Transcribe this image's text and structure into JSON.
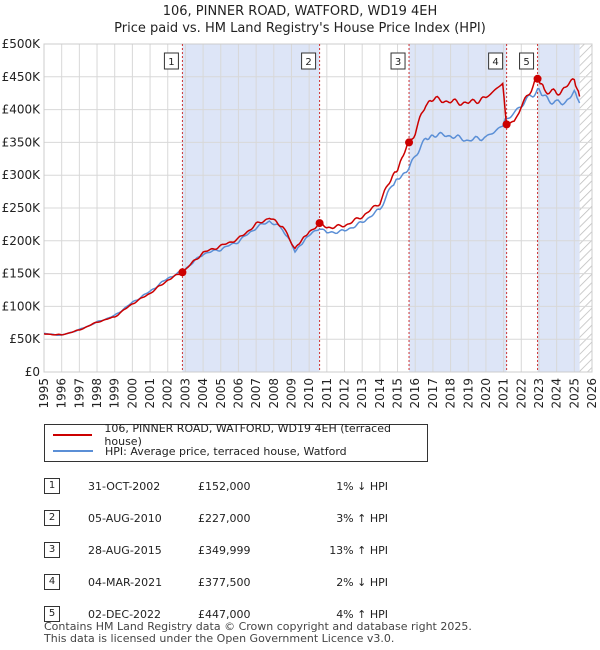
{
  "title_line1": "106, PINNER ROAD, WATFORD, WD19 4EH",
  "title_line2": "Price paid vs. HM Land Registry's House Price Index (HPI)",
  "chart_data": {
    "type": "line",
    "y_ticks": [
      "£0",
      "£50K",
      "£100K",
      "£150K",
      "£200K",
      "£250K",
      "£300K",
      "£350K",
      "£400K",
      "£450K",
      "£500K"
    ],
    "ylim": [
      0,
      500000
    ],
    "x_ticks": [
      "1995",
      "1996",
      "1997",
      "1998",
      "1999",
      "2000",
      "2001",
      "2002",
      "2003",
      "2004",
      "2005",
      "2006",
      "2007",
      "2008",
      "2009",
      "2010",
      "2011",
      "2012",
      "2013",
      "2014",
      "2015",
      "2016",
      "2017",
      "2018",
      "2019",
      "2020",
      "2021",
      "2022",
      "2023",
      "2024",
      "2025",
      "2026"
    ],
    "xlim": [
      1995,
      2026
    ],
    "colors": {
      "property": "#cc0000",
      "hpi": "#5b8fd6",
      "band": "#dde5f7",
      "grid": "#d8d8d8",
      "marker_line": "#cc3333"
    },
    "series": [
      {
        "name": "106, PINNER ROAD, WATFORD, WD19 4EH (terraced house)",
        "points": [
          [
            1995.0,
            58000
          ],
          [
            1996.0,
            56500
          ],
          [
            1997.0,
            64000
          ],
          [
            1998.0,
            76000
          ],
          [
            1999.0,
            84000
          ],
          [
            2000.0,
            104000
          ],
          [
            2001.0,
            120000
          ],
          [
            2002.0,
            140000
          ],
          [
            2002.83,
            152000
          ],
          [
            2004.0,
            182000
          ],
          [
            2005.0,
            192000
          ],
          [
            2006.0,
            203000
          ],
          [
            2007.0,
            225000
          ],
          [
            2007.75,
            235000
          ],
          [
            2008.5,
            222000
          ],
          [
            2009.2,
            188000
          ],
          [
            2010.0,
            213000
          ],
          [
            2010.59,
            227000
          ],
          [
            2011.0,
            220000
          ],
          [
            2012.0,
            223000
          ],
          [
            2013.0,
            237000
          ],
          [
            2014.0,
            258000
          ],
          [
            2014.7,
            300000
          ],
          [
            2015.0,
            310000
          ],
          [
            2015.65,
            349999
          ],
          [
            2016.0,
            365000
          ],
          [
            2016.6,
            410000
          ],
          [
            2017.0,
            416000
          ],
          [
            2018.0,
            412000
          ],
          [
            2019.0,
            410000
          ],
          [
            2020.0,
            418000
          ],
          [
            2020.95,
            440000
          ],
          [
            2021.17,
            377500
          ],
          [
            2021.6,
            382000
          ],
          [
            2022.3,
            420000
          ],
          [
            2022.92,
            447000
          ],
          [
            2023.3,
            430000
          ],
          [
            2024.0,
            425000
          ],
          [
            2024.5,
            433000
          ],
          [
            2025.0,
            447000
          ],
          [
            2025.3,
            420000
          ]
        ]
      },
      {
        "name": "HPI: Average price, terraced house, Watford",
        "points": [
          [
            1995.0,
            58500
          ],
          [
            1996.0,
            56000
          ],
          [
            1997.0,
            64500
          ],
          [
            1998.0,
            76000
          ],
          [
            1999.0,
            86000
          ],
          [
            2000.0,
            106000
          ],
          [
            2001.0,
            123000
          ],
          [
            2002.0,
            143000
          ],
          [
            2002.83,
            153500
          ],
          [
            2004.0,
            180000
          ],
          [
            2005.0,
            187000
          ],
          [
            2006.0,
            199000
          ],
          [
            2007.0,
            220000
          ],
          [
            2007.75,
            230000
          ],
          [
            2008.5,
            218000
          ],
          [
            2009.2,
            185000
          ],
          [
            2010.0,
            208000
          ],
          [
            2010.59,
            220000
          ],
          [
            2011.0,
            212000
          ],
          [
            2012.0,
            215000
          ],
          [
            2013.0,
            228000
          ],
          [
            2014.0,
            248000
          ],
          [
            2014.7,
            285000
          ],
          [
            2015.0,
            295000
          ],
          [
            2015.65,
            310000
          ],
          [
            2016.0,
            330000
          ],
          [
            2016.6,
            355000
          ],
          [
            2017.0,
            362000
          ],
          [
            2018.0,
            360000
          ],
          [
            2019.0,
            353000
          ],
          [
            2020.0,
            358000
          ],
          [
            2020.95,
            375000
          ],
          [
            2021.17,
            385000
          ],
          [
            2021.6,
            395000
          ],
          [
            2022.3,
            415000
          ],
          [
            2022.92,
            430000
          ],
          [
            2023.3,
            418000
          ],
          [
            2024.0,
            410000
          ],
          [
            2024.5,
            412000
          ],
          [
            2025.0,
            425000
          ],
          [
            2025.3,
            410000
          ]
        ]
      }
    ],
    "transactions": [
      {
        "label": "1",
        "x": 2002.83,
        "y": 152000,
        "date": "31-OCT-2002",
        "price": "£152,000",
        "hpi": "1% ↓ HPI"
      },
      {
        "label": "2",
        "x": 2010.59,
        "y": 227000,
        "date": "05-AUG-2010",
        "price": "£227,000",
        "hpi": "3% ↑ HPI"
      },
      {
        "label": "3",
        "x": 2015.65,
        "y": 349999,
        "date": "28-AUG-2015",
        "price": "£349,999",
        "hpi": "13% ↑ HPI"
      },
      {
        "label": "4",
        "x": 2021.17,
        "y": 377500,
        "date": "04-MAR-2021",
        "price": "£377,500",
        "hpi": "2% ↓ HPI"
      },
      {
        "label": "5",
        "x": 2022.92,
        "y": 447000,
        "date": "02-DEC-2022",
        "price": "£447,000",
        "hpi": "4% ↑ HPI"
      }
    ],
    "shaded_ranges": [
      [
        2002.83,
        2010.59
      ],
      [
        2015.65,
        2021.17
      ],
      [
        2022.92,
        2025.3
      ]
    ],
    "hatch_range": [
      2025.3,
      2026
    ]
  },
  "legend": {
    "property_label": "106, PINNER ROAD, WATFORD, WD19 4EH (terraced house)",
    "hpi_label": "HPI: Average price, terraced house, Watford"
  },
  "footer_line1": "Contains HM Land Registry data © Crown copyright and database right 2025.",
  "footer_line2": "This data is licensed under the Open Government Licence v3.0."
}
